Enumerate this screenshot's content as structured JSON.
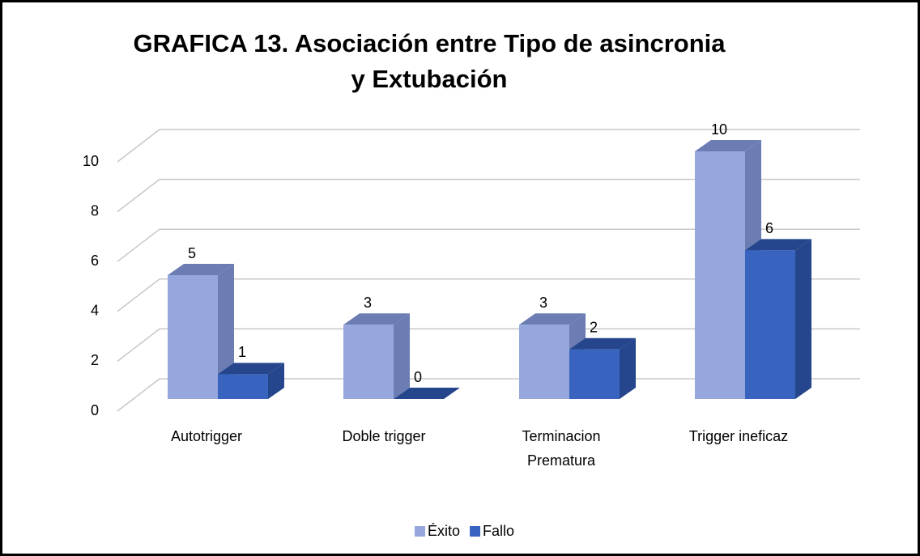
{
  "chart_data": {
    "type": "bar3d",
    "title": [
      "GRAFICA 13. Asociación entre Tipo de asincronia",
      "y Extubación"
    ],
    "categories": [
      [
        "Autotrigger"
      ],
      [
        "Doble trigger"
      ],
      [
        "Terminacion",
        "Prematura"
      ],
      [
        "Trigger ineficaz"
      ]
    ],
    "series": [
      {
        "name": "Éxito",
        "color": "#95a7dd",
        "side": "#6c7db3",
        "values": [
          5,
          3,
          3,
          10
        ]
      },
      {
        "name": "Fallo",
        "color": "#3863be",
        "side": "#25468c",
        "values": [
          1,
          0,
          2,
          6
        ]
      }
    ],
    "ylim": [
      0,
      10
    ],
    "yticks": [
      0,
      2,
      4,
      6,
      8,
      10
    ],
    "grid": true,
    "legend": "bottom"
  }
}
